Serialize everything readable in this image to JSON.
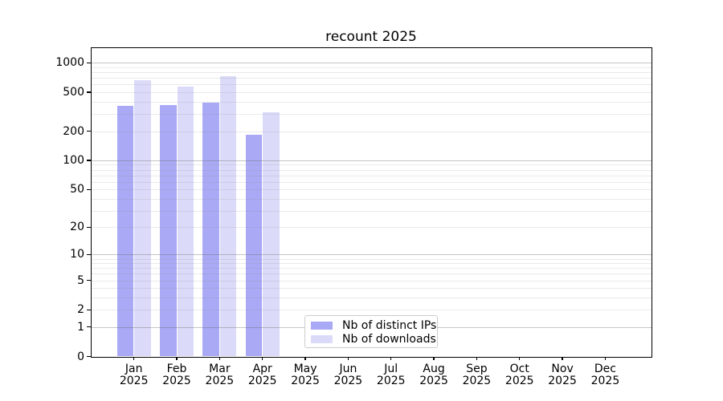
{
  "title": "recount 2025",
  "colors": {
    "distinct_ips_bar": "#a9a9f5",
    "downloads_bar": "#dbdbf9",
    "major_grid": "#c8c8c8",
    "minor_grid": "#eaeaea",
    "axis": "#000000",
    "legend_border": "#cccccc"
  },
  "legend": {
    "items": [
      {
        "label": "Nb of distinct IPs",
        "color": "#a9a9f5"
      },
      {
        "label": "Nb of downloads",
        "color": "#dbdbf9"
      }
    ]
  },
  "chart_data": {
    "type": "bar",
    "title": "recount 2025",
    "year_label": "2025",
    "categories": [
      "Jan",
      "Feb",
      "Mar",
      "Apr",
      "May",
      "Jun",
      "Jul",
      "Aug",
      "Sep",
      "Oct",
      "Nov",
      "Dec"
    ],
    "series": [
      {
        "name": "Nb of distinct IPs",
        "values": [
          360,
          370,
          395,
          185,
          null,
          null,
          null,
          null,
          null,
          null,
          null,
          null
        ]
      },
      {
        "name": "Nb of downloads",
        "values": [
          660,
          575,
          730,
          310,
          null,
          null,
          null,
          null,
          null,
          null,
          null,
          null
        ]
      }
    ],
    "xlabel": "",
    "ylabel": "",
    "yscale": "log10(value+1)",
    "yticks": [
      0,
      1,
      2,
      5,
      10,
      20,
      50,
      100,
      200,
      500,
      1000
    ],
    "ylim": [
      0,
      1420
    ],
    "grid": "horizontal, major and minor, drawn over bars",
    "legend_position": "lower center"
  }
}
